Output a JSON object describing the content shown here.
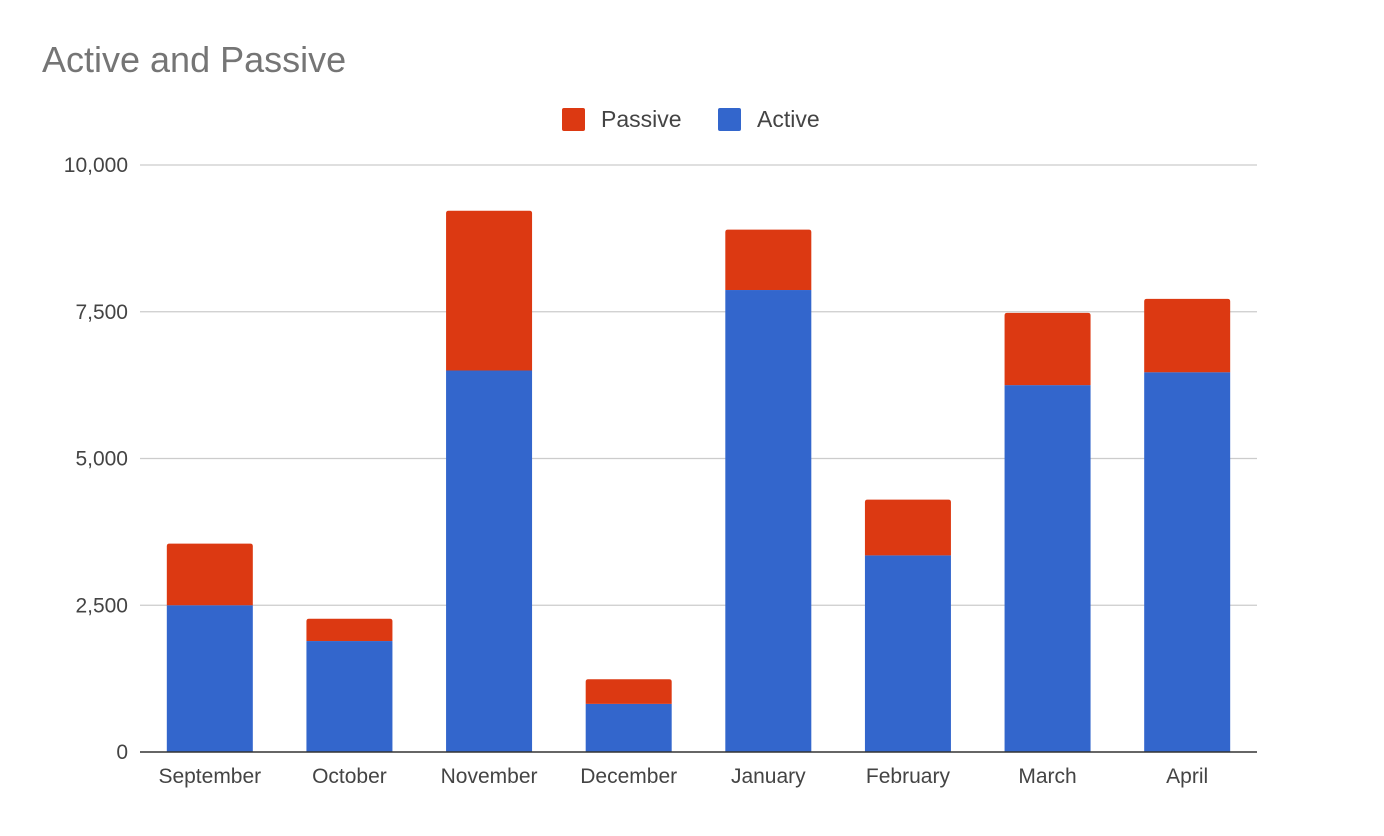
{
  "chart_data": {
    "type": "bar",
    "stacked": true,
    "title": "Active and Passive",
    "xlabel": "",
    "ylabel": "",
    "categories": [
      "September",
      "October",
      "November",
      "December",
      "January",
      "February",
      "March",
      "April"
    ],
    "series": [
      {
        "name": "Active",
        "color": "#3366cc",
        "values": [
          2500,
          1890,
          6500,
          820,
          7870,
          3350,
          6250,
          6470
        ]
      },
      {
        "name": "Passive",
        "color": "#dc3912",
        "values": [
          1050,
          380,
          2720,
          420,
          1030,
          950,
          1230,
          1250
        ]
      }
    ],
    "legend_order": [
      "Passive",
      "Active"
    ],
    "legend_position": "top",
    "ylim": [
      0,
      10000
    ],
    "yticks": [
      0,
      2500,
      5000,
      7500,
      10000
    ],
    "ytick_labels": [
      "0",
      "2,500",
      "5,000",
      "7,500",
      "10,000"
    ],
    "grid": true
  }
}
